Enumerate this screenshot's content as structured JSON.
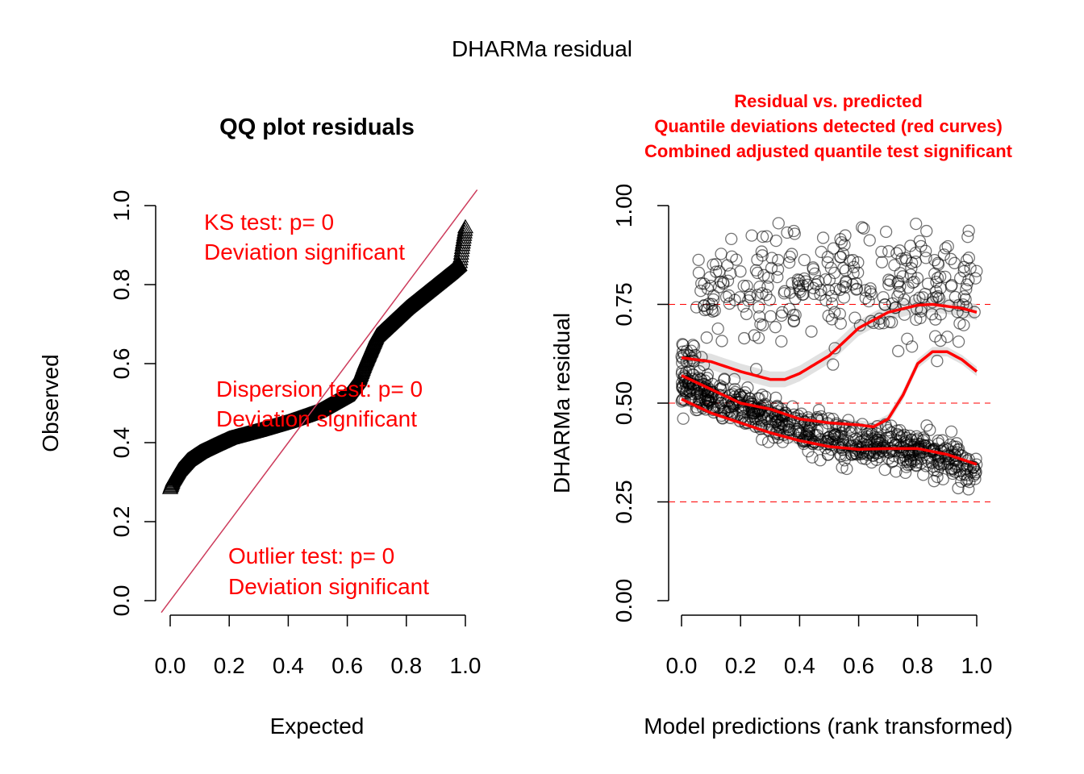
{
  "figure": {
    "title": "DHARMa residual"
  },
  "chart_data": [
    {
      "type": "scatter",
      "title": "QQ plot residuals",
      "xlabel": "Expected",
      "ylabel": "Observed",
      "xlim": [
        -0.03,
        1.05
      ],
      "ylim": [
        0.0,
        1.0
      ],
      "xticks": [
        "0.0",
        "0.2",
        "0.4",
        "0.6",
        "0.8",
        "1.0"
      ],
      "yticks": [
        "0.0",
        "0.2",
        "0.4",
        "0.6",
        "0.8",
        "1.0"
      ],
      "marker": "triangle",
      "reference_line": {
        "slope": 1,
        "intercept": 0,
        "color": "#cd3c5c"
      },
      "quantile_curve": {
        "expected": [
          0.0,
          0.01,
          0.03,
          0.06,
          0.1,
          0.15,
          0.2,
          0.3,
          0.4,
          0.5,
          0.6,
          0.64,
          0.66,
          0.7,
          0.8,
          0.9,
          0.95,
          0.98,
          0.99,
          1.0
        ],
        "observed": [
          0.285,
          0.305,
          0.33,
          0.355,
          0.375,
          0.393,
          0.41,
          0.43,
          0.452,
          0.478,
          0.52,
          0.56,
          0.6,
          0.67,
          0.74,
          0.8,
          0.83,
          0.85,
          0.9,
          0.945
        ]
      },
      "annotations": [
        {
          "text": "KS test: p= 0",
          "text2": "Deviation  significant"
        },
        {
          "text": "Dispersion test: p= 0",
          "text2": "Deviation  significant"
        },
        {
          "text": "Outlier test: p= 0",
          "text2": "Deviation  significant"
        }
      ]
    },
    {
      "type": "scatter",
      "title_lines": [
        "Residual vs. predicted",
        "Quantile deviations detected (red curves)",
        "Combined adjusted quantile test significant"
      ],
      "xlabel": "Model predictions (rank transformed)",
      "ylabel": "DHARMa residual",
      "xlim": [
        0.0,
        1.0
      ],
      "ylim": [
        0.0,
        1.0
      ],
      "xticks": [
        "0.0",
        "0.2",
        "0.4",
        "0.6",
        "0.8",
        "1.0"
      ],
      "yticks": [
        "0.00",
        "0.25",
        "0.50",
        "0.75",
        "1.00"
      ],
      "hlines": [
        0.25,
        0.5,
        0.75
      ],
      "marker": "circle",
      "bands": [
        {
          "name": "upper cluster",
          "y_center": 0.79,
          "y_spread": 0.07,
          "x_range": [
            0.0,
            1.0
          ],
          "n": 320
        },
        {
          "name": "lower trend",
          "x": [
            0.0,
            0.1,
            0.2,
            0.3,
            0.4,
            0.5,
            0.6,
            0.7,
            0.8,
            0.9,
            1.0
          ],
          "y": [
            0.55,
            0.51,
            0.49,
            0.46,
            0.43,
            0.415,
            0.4,
            0.39,
            0.38,
            0.36,
            0.33
          ],
          "spread": 0.025,
          "n": 700
        }
      ],
      "quantile_curves": [
        {
          "name": "0.25 quantile",
          "x": [
            0.0,
            0.1,
            0.2,
            0.3,
            0.4,
            0.5,
            0.6,
            0.7,
            0.8,
            0.9,
            1.0
          ],
          "y": [
            0.51,
            0.475,
            0.45,
            0.425,
            0.405,
            0.39,
            0.383,
            0.385,
            0.385,
            0.37,
            0.345
          ]
        },
        {
          "name": "0.5 quantile",
          "x": [
            0.0,
            0.1,
            0.2,
            0.3,
            0.4,
            0.5,
            0.6,
            0.65,
            0.7,
            0.75,
            0.8,
            0.85,
            0.9,
            0.95,
            1.0
          ],
          "y": [
            0.57,
            0.535,
            0.5,
            0.485,
            0.46,
            0.45,
            0.445,
            0.44,
            0.46,
            0.52,
            0.6,
            0.63,
            0.63,
            0.61,
            0.58
          ]
        },
        {
          "name": "0.75 quantile",
          "x": [
            0.0,
            0.1,
            0.2,
            0.3,
            0.35,
            0.4,
            0.5,
            0.6,
            0.7,
            0.8,
            0.85,
            0.9,
            0.95,
            1.0
          ],
          "y": [
            0.615,
            0.605,
            0.58,
            0.56,
            0.56,
            0.575,
            0.62,
            0.69,
            0.73,
            0.748,
            0.75,
            0.745,
            0.74,
            0.73
          ]
        }
      ]
    }
  ]
}
